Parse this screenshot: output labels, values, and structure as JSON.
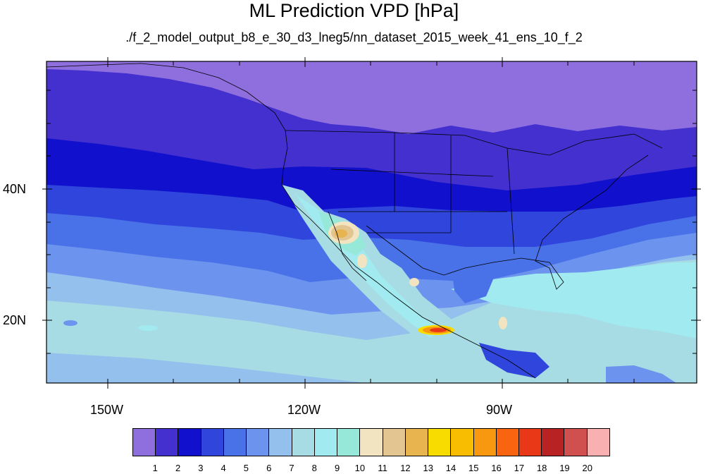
{
  "title": "ML Prediction VPD [hPa]",
  "subtitle": "./f_2_model_output_b8_e_30_d3_lneg5/nn_dataset_2015_week_41_ens_10_f_2",
  "axes": {
    "lat_labels": [
      "40N",
      "20N"
    ],
    "lon_labels": [
      "150W",
      "120W",
      "90W"
    ]
  },
  "legend": {
    "labels": [
      "1",
      "2",
      "3",
      "4",
      "5",
      "6",
      "7",
      "8",
      "9",
      "10",
      "11",
      "12",
      "13",
      "14",
      "15",
      "16",
      "17",
      "18",
      "19",
      "20"
    ],
    "colors": [
      "#8f6fdd",
      "#4330cf",
      "#1110cc",
      "#2f45dc",
      "#4a72e8",
      "#6c93ee",
      "#93c0ec",
      "#a8dce4",
      "#a0eaf0",
      "#96e8d8",
      "#f2e4c0",
      "#e2c590",
      "#e8b450",
      "#f8dc00",
      "#f8bc00",
      "#f89810",
      "#f86410",
      "#e83818",
      "#b82222",
      "#d05050",
      "#f8b0b0"
    ]
  }
}
